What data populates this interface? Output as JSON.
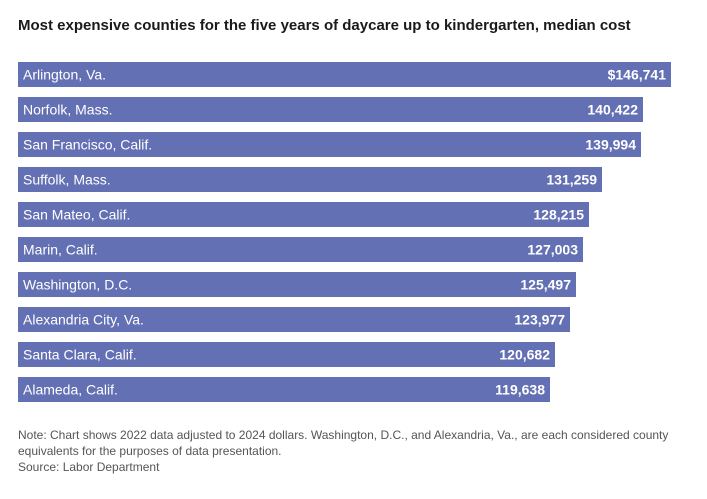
{
  "title": "Most expensive counties for the five years of daycare up to kindergarten, median cost",
  "note": "Note: Chart shows 2022 data adjusted to 2024 dollars. Washington, D.C., and Alexandria, Va., are each considered county equivalents for the purposes of data presentation.",
  "source": "Source: Labor Department",
  "colors": {
    "bar": "#6470b4",
    "text": "#ffffff"
  },
  "chart_data": {
    "type": "bar",
    "orientation": "horizontal",
    "title": "Most expensive counties for the five years of daycare up to kindergarten, median cost",
    "categories": [
      "Arlington, Va.",
      "Norfolk, Mass.",
      "San Francisco, Calif.",
      "Suffolk, Mass.",
      "San Mateo, Calif.",
      "Marin, Calif.",
      "Washington, D.C.",
      "Alexandria City, Va.",
      "Santa Clara, Calif.",
      "Alameda, Calif."
    ],
    "values": [
      146741,
      140422,
      139994,
      131259,
      128215,
      127003,
      125497,
      123977,
      120682,
      119638
    ],
    "value_labels": [
      "$146,741",
      "140,422",
      "139,994",
      "131,259",
      "128,215",
      "127,003",
      "125,497",
      "123,977",
      "120,682",
      "119,638"
    ],
    "xlim": [
      0,
      146741
    ],
    "grid": false,
    "legend": "none"
  }
}
